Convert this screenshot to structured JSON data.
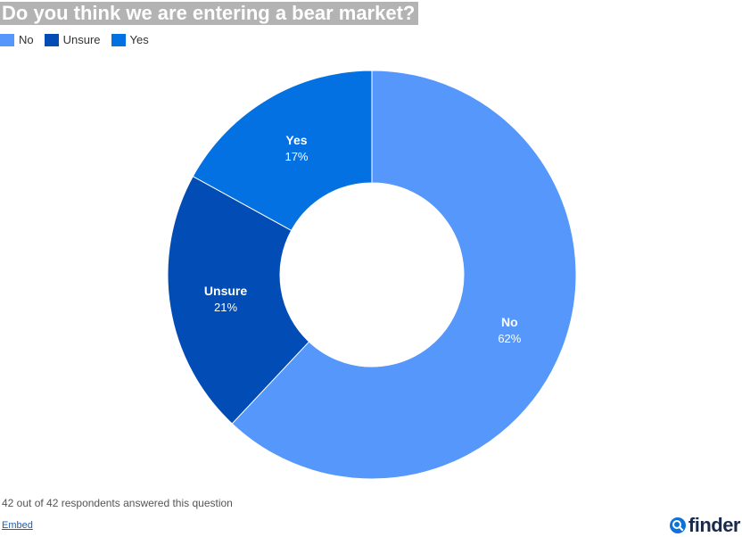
{
  "colors": {
    "no": "#5597fa",
    "unsure": "#024cb6",
    "yes": "#0471e3",
    "logo_accent": "#0e72d8"
  },
  "footer": {
    "respondents": "42 out of 42 respondents answered this question",
    "embed_label": "Embed"
  },
  "logo": {
    "text": "finder"
  },
  "chart_data": {
    "type": "pie",
    "title": "Do you think we are entering a bear market?",
    "legend_position": "top-left",
    "slices": [
      {
        "label": "No",
        "value": 62,
        "display": "62%"
      },
      {
        "label": "Unsure",
        "value": 21,
        "display": "21%"
      },
      {
        "label": "Yes",
        "value": 17,
        "display": "17%"
      }
    ]
  }
}
